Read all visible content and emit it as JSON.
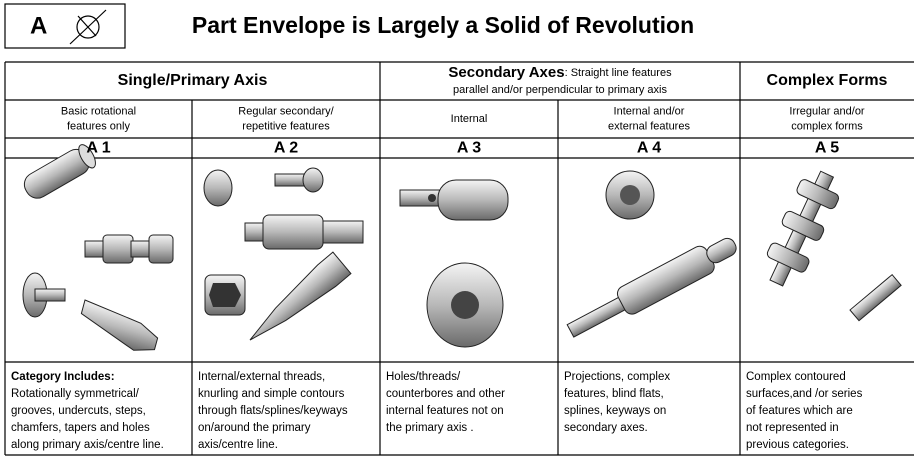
{
  "header": {
    "badge": "A",
    "title": "Part Envelope is Largely a Solid of Revolution"
  },
  "table": {
    "groups": [
      {
        "title": "Single/Primary Axis"
      },
      {
        "title": "Secondary Axes",
        "subtitle": [
          ": Straight line features",
          "parallel and/or perpendicular to primary axis"
        ]
      },
      {
        "title": "Complex  Forms"
      }
    ],
    "columns": [
      {
        "description": [
          "Basic rotational",
          "features only"
        ],
        "code": "A 1",
        "label": "Category Includes:",
        "text": [
          "Rotationally symmetrical/",
          "grooves, undercuts, steps,",
          "chamfers, tapers and holes",
          "along primary axis/centre line."
        ]
      },
      {
        "description": [
          "Regular secondary/",
          "repetitive features"
        ],
        "code": "A 2",
        "text": [
          "Internal/external threads,",
          "knurling and simple contours",
          "through flats/splines/keyways",
          "on/around the primary",
          "axis/centre line."
        ]
      },
      {
        "description": [
          "Internal"
        ],
        "code": "A 3",
        "text": [
          "Holes/threads/",
          "counterbores and other",
          "internal features not on",
          "the primary axis ."
        ]
      },
      {
        "description": [
          "Internal and/or",
          "external features"
        ],
        "code": "A 4",
        "text": [
          "Projections, complex",
          "features, blind flats,",
          "splines, keyways on",
          "secondary axes."
        ]
      },
      {
        "description": [
          "Irregular and/or",
          "complex forms"
        ],
        "code": "A 5",
        "text": [
          "Complex contoured",
          "surfaces,and /or series",
          "of features which are",
          "not represented in",
          "previous categories."
        ]
      }
    ]
  }
}
